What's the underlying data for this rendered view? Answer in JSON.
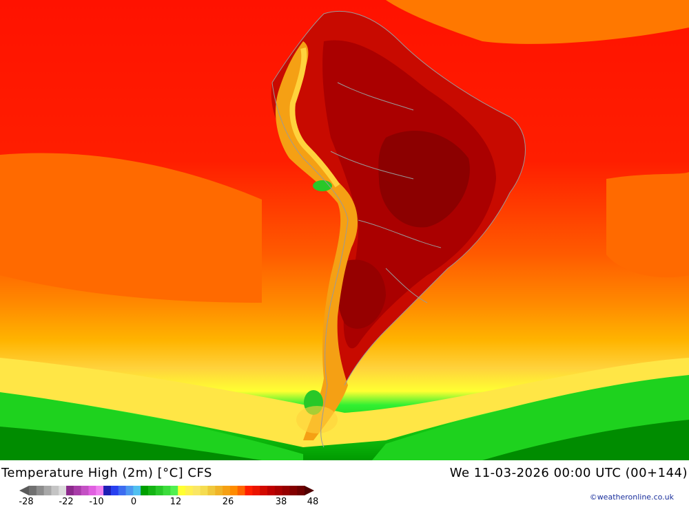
{
  "map": {
    "region": "South America",
    "field": "2m maximum temperature"
  },
  "footer": {
    "title": "Temperature High (2m) [°C] CFS",
    "valid_time": "We 11-03-2026 00:00 UTC (00+144)",
    "credit": "©weatheronline.co.uk"
  },
  "legend": {
    "tick_labels": [
      "-28",
      "-22",
      "-10",
      "0",
      "12",
      "26",
      "38",
      "48"
    ],
    "colors": [
      "#707070",
      "#8c8c8c",
      "#a8a8a8",
      "#c4c4c4",
      "#dcdcdc",
      "#8c2a8c",
      "#a83ca8",
      "#c450c4",
      "#e060e0",
      "#f080f0",
      "#1e1eb4",
      "#2840f0",
      "#3c6cf0",
      "#4c98f0",
      "#50c0f0",
      "#00a000",
      "#14b414",
      "#28c828",
      "#3cdc3c",
      "#50f050",
      "#ffff32",
      "#fff050",
      "#fae664",
      "#f5dc50",
      "#f0c83c",
      "#f0b428",
      "#f5a014",
      "#ff8c00",
      "#ff6400",
      "#ff1e00",
      "#eb1400",
      "#d20a00",
      "#be0000",
      "#aa0000",
      "#960000",
      "#820000",
      "#6e0000"
    ]
  }
}
